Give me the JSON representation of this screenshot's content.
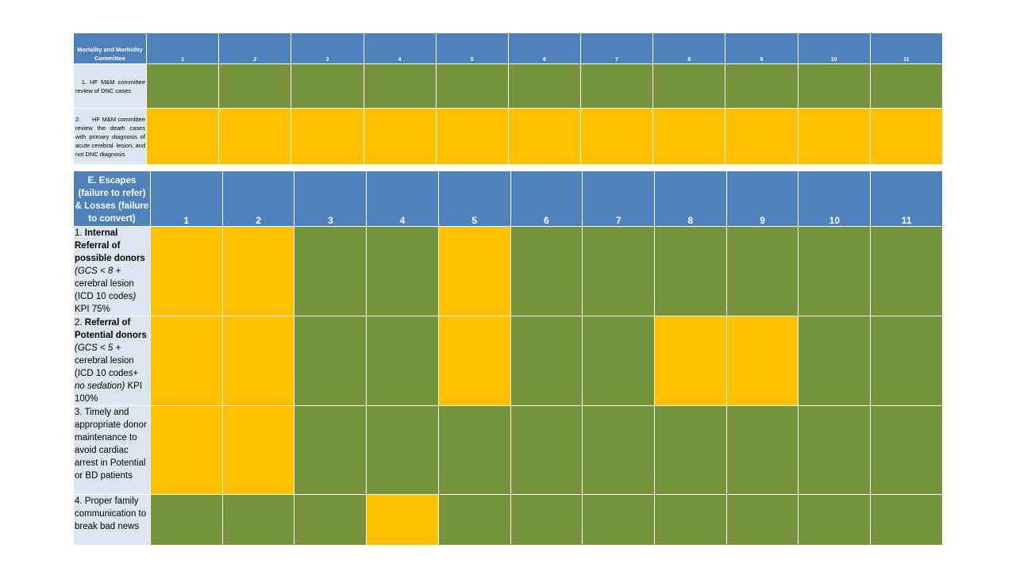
{
  "colors": {
    "header": "#4f81bd",
    "label_bg": "#dce6f1",
    "green": "#77933c",
    "yellow": "#ffc000"
  },
  "mm_table": {
    "title": "Mortality and Morbidity Committee",
    "columns": [
      "1",
      "2",
      "3",
      "4",
      "5",
      "6",
      "7",
      "8",
      "9",
      "10",
      "11"
    ],
    "rows": [
      {
        "label": "1. HF M&M committee review of DNC cases",
        "status": [
          "green",
          "green",
          "green",
          "green",
          "green",
          "green",
          "green",
          "green",
          "green",
          "green",
          "green"
        ]
      },
      {
        "label": "2.      HF M&M committee review the death cases with primary diagnosis of acute cerebral  lesion, and not DNC diagnosis",
        "status": [
          "yellow",
          "yellow",
          "yellow",
          "yellow",
          "yellow",
          "yellow",
          "yellow",
          "yellow",
          "yellow",
          "yellow",
          "yellow"
        ]
      }
    ]
  },
  "escapes_table": {
    "title": "E. Escapes (failure to refer) & Losses (failure to convert)",
    "columns": [
      "1",
      "2",
      "3",
      "4",
      "5",
      "6",
      "7",
      "8",
      "9",
      "10",
      "11"
    ],
    "rows": [
      {
        "label_prefix": "1. ",
        "label_bold": "Internal Referral of possible donors",
        "label_italic": "(GCS < 8 +",
        "label_rest": "cerebral lesion (ICD 10 codes",
        "label_italic2": ")",
        "label_tail": "KPI 75%",
        "status": [
          "yellow",
          "yellow",
          "green",
          "green",
          "yellow",
          "green",
          "green",
          "green",
          "green",
          "green",
          "green"
        ]
      },
      {
        "label_prefix": "2. ",
        "label_bold": "Referral of Potential donors",
        "label_italic": "(GCS < 5 +",
        "label_rest": "cerebral lesion (ICD 10 codes+",
        "label_italic2": "no sedation)",
        "label_tail": "KPI 100%",
        "status": [
          "yellow",
          "yellow",
          "green",
          "green",
          "yellow",
          "green",
          "green",
          "yellow",
          "yellow",
          "green",
          "green"
        ]
      },
      {
        "label": "3. Timely and appropriate donor maintenance to avoid cardiac arrest in Potential or BD patients",
        "status": [
          "yellow",
          "yellow",
          "green",
          "green",
          "green",
          "green",
          "green",
          "green",
          "green",
          "green",
          "green"
        ]
      },
      {
        "label": "4. Proper family communication to break bad news",
        "status": [
          "green",
          "green",
          "green",
          "yellow",
          "green",
          "green",
          "green",
          "green",
          "green",
          "green",
          "green"
        ]
      }
    ]
  }
}
